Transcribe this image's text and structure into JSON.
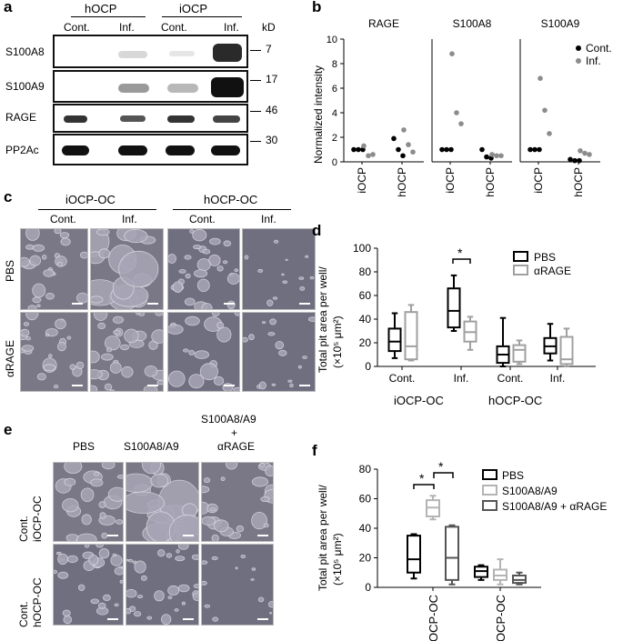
{
  "panel_a": {
    "label": "a",
    "group_hocp": "hOCP",
    "group_iocp": "iOCP",
    "lane_cont": "Cont.",
    "lane_inf": "Inf.",
    "kd_label": "kD",
    "rows": [
      {
        "name": "S100A8",
        "kd": "7"
      },
      {
        "name": "S100A9",
        "kd": "17"
      },
      {
        "name": "RAGE",
        "kd": "46"
      },
      {
        "name": "PP2Ac",
        "kd": "30"
      }
    ]
  },
  "panel_b": {
    "label": "b",
    "ylabel": "Normalized intensity",
    "legend": [
      "Cont.",
      "Inf."
    ],
    "colors": {
      "cont": "#000000",
      "inf": "#8c8c8c"
    },
    "chart_data": {
      "type": "scatter",
      "ylim": [
        0,
        10
      ],
      "yticks": [
        0,
        2,
        4,
        6,
        8,
        10
      ],
      "facets": [
        {
          "title": "RAGE",
          "iOCP": {
            "Cont.": [
              1,
              1,
              1
            ],
            "Inf.": [
              1.3,
              0.5,
              0.6
            ]
          },
          "hOCP": {
            "Cont.": [
              1.9,
              1.0,
              0.5
            ],
            "Inf.": [
              2.6,
              1.4,
              0.8
            ]
          }
        },
        {
          "title": "S100A8",
          "iOCP": {
            "Cont.": [
              1,
              1,
              1
            ],
            "Inf.": [
              8.8,
              4.0,
              3.1
            ]
          },
          "hOCP": {
            "Cont.": [
              1.0,
              0.4,
              0.3
            ],
            "Inf.": [
              0.6,
              0.5,
              0.5
            ]
          }
        },
        {
          "title": "S100A9",
          "iOCP": {
            "Cont.": [
              1,
              1,
              1
            ],
            "Inf.": [
              6.8,
              4.2,
              2.3
            ]
          },
          "hOCP": {
            "Cont.": [
              0.2,
              0.1,
              0.1
            ],
            "Inf.": [
              0.9,
              0.7,
              0.6
            ]
          }
        }
      ],
      "categories": [
        "iOCP",
        "hOCP"
      ]
    }
  },
  "panel_c": {
    "label": "c",
    "group_left": "iOCP-OC",
    "group_right": "hOCP-OC",
    "col_cont": "Cont.",
    "col_inf": "Inf.",
    "row_pbs": "PBS",
    "row_rage": "αRAGE"
  },
  "panel_d": {
    "label": "d",
    "ylabel_1": "Total pit area per well/",
    "ylabel_2": "(×10⁵ μm²)",
    "legend": [
      "PBS",
      "αRAGE"
    ],
    "colors": {
      "pbs": "#000000",
      "rage": "#a0a0a0"
    },
    "sig": "*",
    "groups": [
      "iOCP-OC",
      "hOCP-OC"
    ],
    "chart_data": {
      "type": "box",
      "ylim": [
        0,
        100
      ],
      "yticks": [
        0,
        20,
        40,
        60,
        80,
        100
      ],
      "categories": [
        "Cont.",
        "Inf.",
        "Cont.",
        "Inf."
      ],
      "series": [
        {
          "name": "PBS",
          "boxes": [
            {
              "min": 7,
              "q1": 13,
              "median": 21,
              "q3": 32,
              "max": 45
            },
            {
              "min": 30,
              "q1": 33,
              "median": 47,
              "q3": 66,
              "max": 77
            },
            {
              "min": 0,
              "q1": 3,
              "median": 10,
              "q3": 17,
              "max": 41
            },
            {
              "min": 5,
              "q1": 11,
              "median": 17,
              "q3": 24,
              "max": 36
            }
          ]
        },
        {
          "name": "αRAGE",
          "boxes": [
            {
              "min": 5,
              "q1": 6,
              "median": 17,
              "q3": 46,
              "max": 52
            },
            {
              "min": 14,
              "q1": 21,
              "median": 29,
              "q3": 38,
              "max": 42
            },
            {
              "min": 2,
              "q1": 4,
              "median": 14,
              "q3": 18,
              "max": 22
            },
            {
              "min": 0,
              "q1": 2,
              "median": 6,
              "q3": 25,
              "max": 32
            }
          ]
        }
      ]
    }
  },
  "panel_e": {
    "label": "e",
    "col_pbs": "PBS",
    "col_s100": "S100A8/A9",
    "col_combo_1": "S100A8/A9",
    "col_combo_2": "+",
    "col_combo_3": "αRAGE",
    "row1_a": "Cont.",
    "row1_b": "iOCP-OC",
    "row2_a": "Cont.",
    "row2_b": "hOCP-OC"
  },
  "panel_f": {
    "label": "f",
    "ylabel_1": "Total pit area per well/",
    "ylabel_2": "(×10⁵ μm²)",
    "legend": [
      "PBS",
      "S100A8/A9",
      "S100A8/A9 + αRAGE"
    ],
    "colors": {
      "pbs": "#000000",
      "s100": "#b4b4b4",
      "combo": "#555555"
    },
    "sig": "*",
    "chart_data": {
      "type": "box",
      "ylim": [
        0,
        80
      ],
      "yticks": [
        0,
        20,
        40,
        60,
        80
      ],
      "categories": [
        "iOCP-OC",
        "hOCP-OC"
      ],
      "series": [
        {
          "name": "PBS",
          "boxes": [
            {
              "min": 6,
              "q1": 10,
              "median": 19,
              "q3": 35,
              "max": 36
            },
            {
              "min": 5,
              "q1": 7,
              "median": 11,
              "q3": 14,
              "max": 15
            }
          ]
        },
        {
          "name": "S100A8/A9",
          "boxes": [
            {
              "min": 46,
              "q1": 48,
              "median": 54,
              "q3": 59,
              "max": 62
            },
            {
              "min": 2,
              "q1": 5,
              "median": 8,
              "q3": 12,
              "max": 19
            }
          ]
        },
        {
          "name": "S100A8/A9 + αRAGE",
          "boxes": [
            {
              "min": 2,
              "q1": 5,
              "median": 20,
              "q3": 41,
              "max": 42
            },
            {
              "min": 2,
              "q1": 3,
              "median": 5,
              "q3": 8,
              "max": 10
            }
          ]
        }
      ]
    }
  }
}
